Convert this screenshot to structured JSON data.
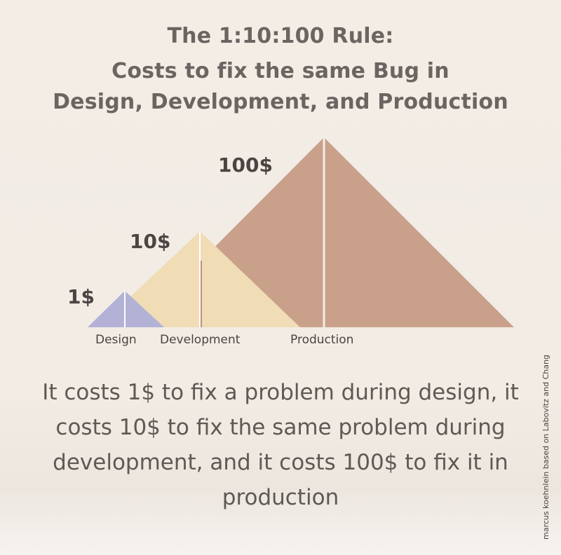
{
  "header": {
    "title_line1": "The 1:10:100 Rule:",
    "title_line2": "Costs to fix the same Bug in",
    "title_line3": "Design, Development, and Production"
  },
  "diagram": {
    "stages": [
      {
        "id": "design",
        "label": "Design",
        "cost_label": "1$",
        "cost": 1,
        "color": "#b3b1d6"
      },
      {
        "id": "development",
        "label": "Development",
        "cost_label": "10$",
        "cost": 10,
        "color": "#f0dcb5"
      },
      {
        "id": "production",
        "label": "Production",
        "cost_label": "100$",
        "cost": 100,
        "color": "#c9a18a"
      }
    ]
  },
  "description": "It costs 1$ to fix a problem during design, it costs 10$ to fix the same problem during development, and it costs 100$ to fix it in production",
  "credit": "marcus koehnlein based on Labovitz and Chang"
}
